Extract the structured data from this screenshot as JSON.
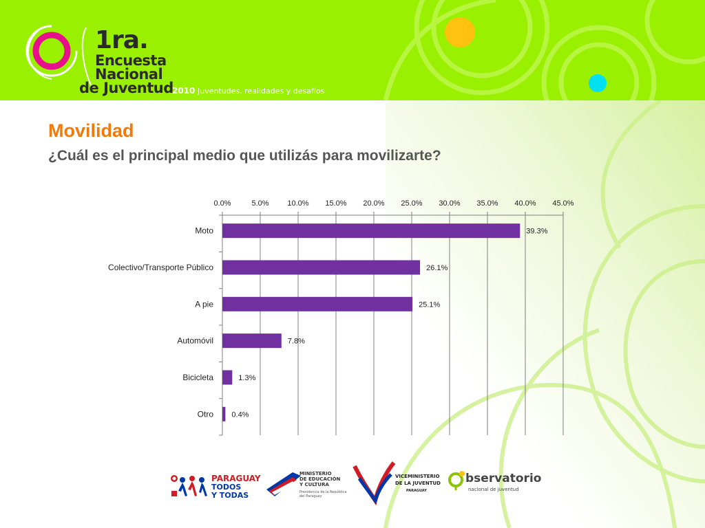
{
  "header": {
    "logo_line1": "1ra.",
    "logo_line2": "Encuesta",
    "logo_line3": "Nacional",
    "logo_line4": "de Juventud",
    "tagline_year": "2010",
    "tagline_text": "Juventudes, realidades y desafíos"
  },
  "slide": {
    "title": "Movilidad",
    "subtitle": "¿Cuál es el principal medio que utilizás para movilizarte?"
  },
  "chart_data": {
    "type": "bar",
    "orientation": "horizontal",
    "categories": [
      "Moto",
      "Colectivo/Transporte Público",
      "A pie",
      "Automóvil",
      "Bicicleta",
      "Otro"
    ],
    "values": [
      39.3,
      26.1,
      25.1,
      7.8,
      1.3,
      0.4
    ],
    "data_labels": [
      "39.3%",
      "26.1%",
      "25.1%",
      "7.8%",
      "1.3%",
      "0.4%"
    ],
    "xlim": [
      0,
      45
    ],
    "ticks": [
      0,
      5,
      10,
      15,
      20,
      25,
      30,
      35,
      40,
      45
    ],
    "tick_labels": [
      "0.0%",
      "5.0%",
      "10.0%",
      "15.0%",
      "20.0%",
      "25.0%",
      "30.0%",
      "35.0%",
      "40.0%",
      "45.0%"
    ],
    "axis_position": "top",
    "grid": true,
    "bar_color": "#7030a0"
  },
  "footer": {
    "paraguay_line1": "PARAGUAY",
    "paraguay_line2": "TODOS",
    "paraguay_line3": "Y TODAS",
    "mec_line1": "MINISTERIO",
    "mec_line2": "DE EDUCACIÓN",
    "mec_line3": "Y CULTURA",
    "mec_line4": "Presidencia de la República",
    "mec_line5": "del Paraguay",
    "vice_line1": "VICEMINISTERIO",
    "vice_line2": "DE LA JUVENTUD",
    "vice_line3": "PARAGUAY",
    "obs_line1": "bservatorio",
    "obs_line2": "nacional de juventud"
  },
  "colors": {
    "header_green": "#99f000",
    "title_orange": "#f07a0a",
    "subtitle_gray": "#555555",
    "bar_purple": "#7030a0"
  }
}
